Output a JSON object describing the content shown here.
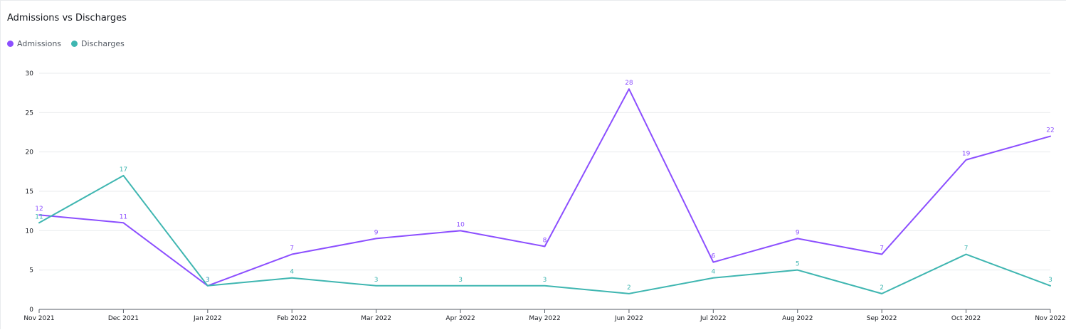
{
  "chart_data": {
    "type": "line",
    "title": "Admissions vs Discharges",
    "categories": [
      "Nov 2021",
      "Dec 2021",
      "Jan 2022",
      "Feb 2022",
      "Mar 2022",
      "Apr 2022",
      "May 2022",
      "Jun 2022",
      "Jul 2022",
      "Aug 2022",
      "Sep 2022",
      "Oct 2022",
      "Nov 2022"
    ],
    "series": [
      {
        "name": "Admissions",
        "color": "#8c4fff",
        "values": [
          12,
          11,
          3,
          7,
          9,
          10,
          8,
          28,
          6,
          9,
          7,
          19,
          22
        ]
      },
      {
        "name": "Discharges",
        "color": "#3fb6b1",
        "values": [
          11,
          17,
          3,
          4,
          3,
          3,
          3,
          2,
          4,
          5,
          2,
          7,
          3
        ]
      }
    ],
    "ylim": [
      0,
      30
    ],
    "yticks": [
      0,
      5,
      10,
      15,
      20,
      25,
      30
    ],
    "xlabel": "",
    "ylabel": "",
    "grid": true,
    "legend": "top-left"
  }
}
